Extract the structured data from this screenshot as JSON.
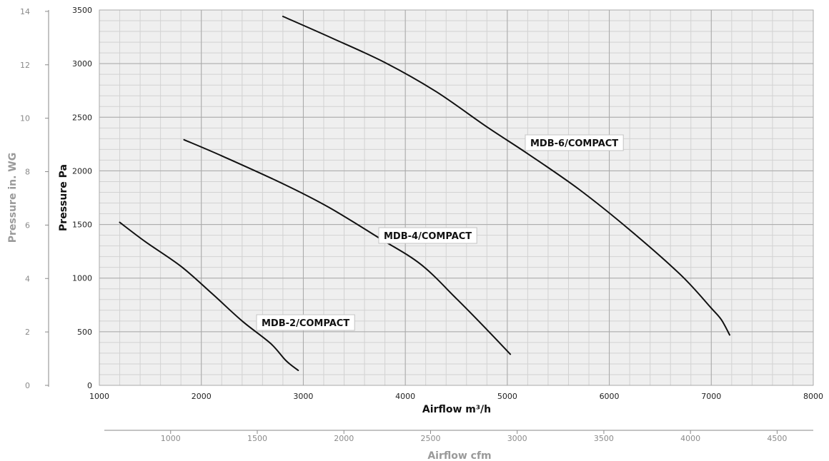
{
  "chart_data": {
    "type": "line",
    "xlabel": "Airflow m³/h",
    "ylabel": "Pressure Pa",
    "xlim": [
      1000,
      8000
    ],
    "ylim": [
      0,
      3500
    ],
    "x_ticks": [
      1000,
      2000,
      3000,
      4000,
      5000,
      6000,
      7000,
      8000
    ],
    "y_ticks": [
      0,
      500,
      1000,
      1500,
      2000,
      2500,
      3000,
      3500
    ],
    "secondary_x": {
      "label": "Airflow cfm",
      "ticks": [
        1000,
        1500,
        2000,
        2500,
        3000,
        3500,
        4000,
        4500
      ],
      "factor_m3h_per_unit": 1.699
    },
    "secondary_y": {
      "label": "Pressure in. WG",
      "ticks": [
        0,
        2,
        4,
        6,
        8,
        10,
        12,
        14
      ],
      "factor_pa_per_unit": 249.09
    },
    "grid": true,
    "series": [
      {
        "name": "MDB-2/COMPACT",
        "label": "MDB-2/COMPACT",
        "color": "#111111",
        "points": [
          [
            1200,
            1520
          ],
          [
            1450,
            1340
          ],
          [
            1800,
            1110
          ],
          [
            2100,
            860
          ],
          [
            2400,
            600
          ],
          [
            2680,
            390
          ],
          [
            2830,
            230
          ],
          [
            2950,
            140
          ]
        ]
      },
      {
        "name": "MDB-4/COMPACT",
        "label": "MDB-4/COMPACT",
        "color": "#111111",
        "points": [
          [
            1830,
            2290
          ],
          [
            2200,
            2140
          ],
          [
            2800,
            1880
          ],
          [
            3250,
            1660
          ],
          [
            3750,
            1370
          ],
          [
            4150,
            1130
          ],
          [
            4500,
            810
          ],
          [
            4800,
            520
          ],
          [
            5030,
            290
          ]
        ]
      },
      {
        "name": "MDB-6/COMPACT",
        "label": "MDB-6/COMPACT",
        "color": "#111111",
        "points": [
          [
            2800,
            3440
          ],
          [
            3300,
            3230
          ],
          [
            3800,
            3010
          ],
          [
            4300,
            2740
          ],
          [
            4800,
            2410
          ],
          [
            5200,
            2160
          ],
          [
            5700,
            1830
          ],
          [
            6200,
            1450
          ],
          [
            6700,
            1030
          ],
          [
            7000,
            720
          ],
          [
            7100,
            610
          ],
          [
            7180,
            470
          ]
        ]
      }
    ]
  }
}
